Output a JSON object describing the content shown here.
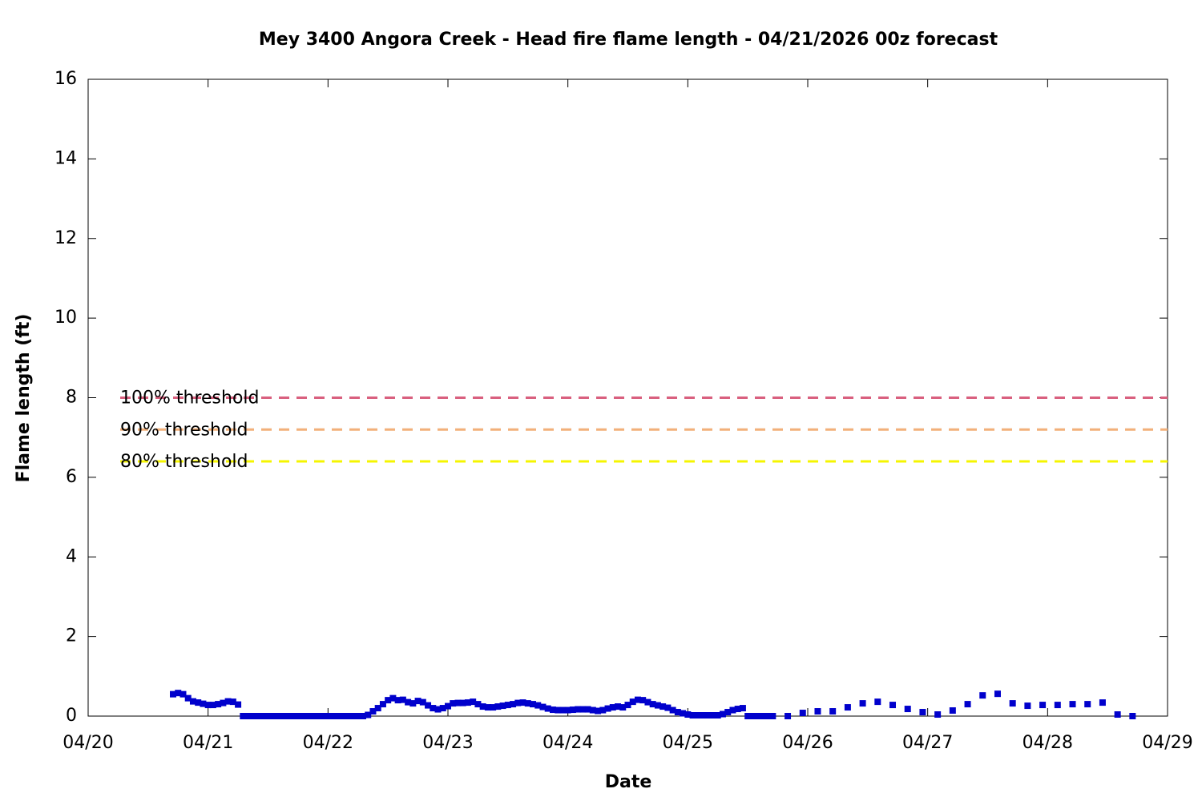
{
  "chart_data": {
    "type": "scatter",
    "title": "Mey 3400 Angora Creek - Head fire flame length - 04/21/2026 00z forecast",
    "xlabel": "Date",
    "ylabel": "Flame length (ft)",
    "xlim": [
      "04/20 00:00",
      "04/29 00:00"
    ],
    "xticks": [
      {
        "value": "04/20 00:00",
        "label": "04/20"
      },
      {
        "value": "04/21 00:00",
        "label": "04/21"
      },
      {
        "value": "04/22 00:00",
        "label": "04/22"
      },
      {
        "value": "04/23 00:00",
        "label": "04/23"
      },
      {
        "value": "04/24 00:00",
        "label": "04/24"
      },
      {
        "value": "04/25 00:00",
        "label": "04/25"
      },
      {
        "value": "04/26 00:00",
        "label": "04/26"
      },
      {
        "value": "04/27 00:00",
        "label": "04/27"
      },
      {
        "value": "04/28 00:00",
        "label": "04/28"
      },
      {
        "value": "04/29 00:00",
        "label": "04/29"
      }
    ],
    "ylim": [
      0,
      16
    ],
    "yticks": [
      0,
      2,
      4,
      6,
      8,
      10,
      12,
      14,
      16
    ],
    "thresholds": [
      {
        "name": "100% threshold",
        "value": 8.0,
        "color": "#d9607f"
      },
      {
        "name": "90% threshold",
        "value": 7.2,
        "color": "#f2b07a"
      },
      {
        "name": "80% threshold",
        "value": 6.4,
        "color": "#f5f500"
      }
    ],
    "series": [
      {
        "color": "#0000cc",
        "x": [
          "04/20 17:00",
          "04/20 18:00",
          "04/20 19:00",
          "04/20 20:00",
          "04/20 21:00",
          "04/20 22:00",
          "04/20 23:00",
          "04/21 00:00",
          "04/21 01:00",
          "04/21 02:00",
          "04/21 03:00",
          "04/21 04:00",
          "04/21 05:00",
          "04/21 06:00",
          "04/21 07:00",
          "04/21 08:00",
          "04/21 09:00",
          "04/21 10:00",
          "04/21 11:00",
          "04/21 12:00",
          "04/21 13:00",
          "04/21 14:00",
          "04/21 15:00",
          "04/21 16:00",
          "04/21 17:00",
          "04/21 18:00",
          "04/21 19:00",
          "04/21 20:00",
          "04/21 21:00",
          "04/21 22:00",
          "04/21 23:00",
          "04/22 00:00",
          "04/22 01:00",
          "04/22 02:00",
          "04/22 03:00",
          "04/22 04:00",
          "04/22 05:00",
          "04/22 06:00",
          "04/22 07:00",
          "04/22 08:00",
          "04/22 09:00",
          "04/22 10:00",
          "04/22 11:00",
          "04/22 12:00",
          "04/22 13:00",
          "04/22 14:00",
          "04/22 15:00",
          "04/22 16:00",
          "04/22 17:00",
          "04/22 18:00",
          "04/22 19:00",
          "04/22 20:00",
          "04/22 21:00",
          "04/22 22:00",
          "04/22 23:00",
          "04/23 00:00",
          "04/23 01:00",
          "04/23 02:00",
          "04/23 03:00",
          "04/23 04:00",
          "04/23 05:00",
          "04/23 06:00",
          "04/23 07:00",
          "04/23 08:00",
          "04/23 09:00",
          "04/23 10:00",
          "04/23 11:00",
          "04/23 12:00",
          "04/23 13:00",
          "04/23 14:00",
          "04/23 15:00",
          "04/23 16:00",
          "04/23 17:00",
          "04/23 18:00",
          "04/23 19:00",
          "04/23 20:00",
          "04/23 21:00",
          "04/23 22:00",
          "04/23 23:00",
          "04/24 00:00",
          "04/24 01:00",
          "04/24 02:00",
          "04/24 03:00",
          "04/24 04:00",
          "04/24 05:00",
          "04/24 06:00",
          "04/24 07:00",
          "04/24 08:00",
          "04/24 09:00",
          "04/24 10:00",
          "04/24 11:00",
          "04/24 12:00",
          "04/24 13:00",
          "04/24 14:00",
          "04/24 15:00",
          "04/24 16:00",
          "04/24 17:00",
          "04/24 18:00",
          "04/24 19:00",
          "04/24 20:00",
          "04/24 21:00",
          "04/24 22:00",
          "04/24 23:00",
          "04/25 00:00",
          "04/25 01:00",
          "04/25 02:00",
          "04/25 03:00",
          "04/25 04:00",
          "04/25 05:00",
          "04/25 06:00",
          "04/25 07:00",
          "04/25 08:00",
          "04/25 09:00",
          "04/25 10:00",
          "04/25 11:00",
          "04/25 12:00",
          "04/25 13:00",
          "04/25 14:00",
          "04/25 15:00",
          "04/25 16:00",
          "04/25 17:00",
          "04/25 20:00",
          "04/25 23:00",
          "04/26 02:00",
          "04/26 05:00",
          "04/26 08:00",
          "04/26 11:00",
          "04/26 14:00",
          "04/26 17:00",
          "04/26 20:00",
          "04/26 23:00",
          "04/27 02:00",
          "04/27 05:00",
          "04/27 08:00",
          "04/27 11:00",
          "04/27 14:00",
          "04/27 17:00",
          "04/27 20:00",
          "04/27 23:00",
          "04/28 02:00",
          "04/28 05:00",
          "04/28 08:00",
          "04/28 11:00",
          "04/28 14:00",
          "04/28 17:00"
        ],
        "values": [
          0.55,
          0.58,
          0.55,
          0.45,
          0.37,
          0.34,
          0.31,
          0.28,
          0.28,
          0.3,
          0.33,
          0.37,
          0.36,
          0.29,
          0,
          0,
          0,
          0,
          0,
          0,
          0,
          0,
          0,
          0,
          0,
          0,
          0,
          0,
          0,
          0,
          0,
          0,
          0,
          0,
          0,
          0,
          0,
          0,
          0,
          0.03,
          0.12,
          0.2,
          0.3,
          0.4,
          0.45,
          0.4,
          0.41,
          0.35,
          0.32,
          0.38,
          0.35,
          0.27,
          0.2,
          0.17,
          0.2,
          0.25,
          0.32,
          0.33,
          0.33,
          0.34,
          0.36,
          0.3,
          0.24,
          0.22,
          0.22,
          0.24,
          0.26,
          0.28,
          0.3,
          0.33,
          0.34,
          0.32,
          0.3,
          0.27,
          0.23,
          0.19,
          0.16,
          0.15,
          0.15,
          0.15,
          0.16,
          0.17,
          0.17,
          0.17,
          0.15,
          0.13,
          0.15,
          0.19,
          0.22,
          0.24,
          0.22,
          0.28,
          0.36,
          0.41,
          0.4,
          0.35,
          0.3,
          0.27,
          0.24,
          0.21,
          0.15,
          0.1,
          0.07,
          0.04,
          0.02,
          0.02,
          0.02,
          0.02,
          0.02,
          0.02,
          0.05,
          0.1,
          0.15,
          0.18,
          0.2,
          0,
          0,
          0,
          0,
          0,
          0,
          0,
          0.08,
          0.12,
          0.12,
          0.22,
          0.32,
          0.36,
          0.28,
          0.18,
          0.1,
          0.04,
          0.14,
          0.3,
          0.52,
          0.56,
          0.32,
          0.26,
          0.28,
          0.28,
          0.3,
          0.3,
          0.34,
          0.04,
          0
        ]
      }
    ]
  }
}
